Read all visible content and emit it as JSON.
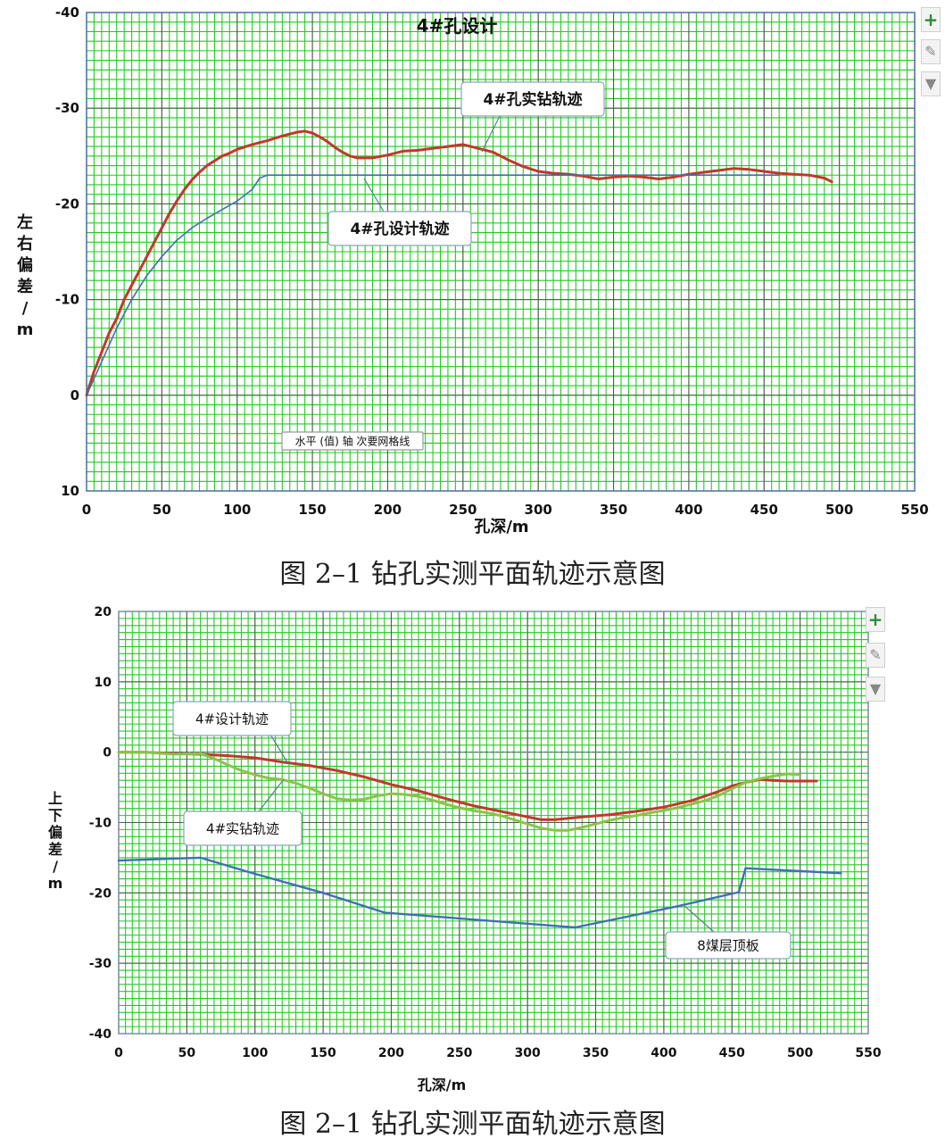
{
  "chart_data": [
    {
      "type": "line",
      "title": "4#孔设计",
      "xlabel": "孔深/m",
      "ylabel": "左右偏差/m",
      "xlim": [
        0,
        550
      ],
      "ylim": [
        -40,
        10
      ],
      "y_inverted": true,
      "x_ticks": [
        0,
        50,
        100,
        150,
        200,
        250,
        300,
        350,
        400,
        450,
        500,
        550
      ],
      "y_ticks": [
        -40,
        -30,
        -20,
        -10,
        0,
        10
      ],
      "grid": true,
      "series": [
        {
          "name": "4#孔实钻轨迹",
          "color": "#c0392b",
          "points": [
            [
              0,
              0
            ],
            [
              5,
              -2.5
            ],
            [
              10,
              -4.5
            ],
            [
              15,
              -6.5
            ],
            [
              20,
              -8
            ],
            [
              25,
              -10
            ],
            [
              30,
              -11.5
            ],
            [
              35,
              -13
            ],
            [
              40,
              -14.5
            ],
            [
              45,
              -16
            ],
            [
              50,
              -17.5
            ],
            [
              55,
              -19
            ],
            [
              60,
              -20.3
            ],
            [
              65,
              -21.5
            ],
            [
              70,
              -22.5
            ],
            [
              75,
              -23.3
            ],
            [
              80,
              -24
            ],
            [
              85,
              -24.5
            ],
            [
              90,
              -25
            ],
            [
              95,
              -25.3
            ],
            [
              100,
              -25.7
            ],
            [
              110,
              -26.2
            ],
            [
              120,
              -26.6
            ],
            [
              130,
              -27.1
            ],
            [
              140,
              -27.5
            ],
            [
              145,
              -27.6
            ],
            [
              150,
              -27.4
            ],
            [
              155,
              -27
            ],
            [
              160,
              -26.5
            ],
            [
              165,
              -25.9
            ],
            [
              170,
              -25.4
            ],
            [
              175,
              -25
            ],
            [
              180,
              -24.8
            ],
            [
              190,
              -24.8
            ],
            [
              200,
              -25.1
            ],
            [
              210,
              -25.5
            ],
            [
              220,
              -25.6
            ],
            [
              230,
              -25.8
            ],
            [
              240,
              -26
            ],
            [
              250,
              -26.2
            ],
            [
              255,
              -26
            ],
            [
              260,
              -25.8
            ],
            [
              270,
              -25.4
            ],
            [
              280,
              -24.6
            ],
            [
              290,
              -23.9
            ],
            [
              300,
              -23.4
            ],
            [
              310,
              -23.2
            ],
            [
              320,
              -23.1
            ],
            [
              330,
              -22.9
            ],
            [
              340,
              -22.6
            ],
            [
              350,
              -22.8
            ],
            [
              360,
              -22.9
            ],
            [
              370,
              -22.8
            ],
            [
              380,
              -22.6
            ],
            [
              390,
              -22.8
            ],
            [
              400,
              -23.1
            ],
            [
              410,
              -23.3
            ],
            [
              420,
              -23.5
            ],
            [
              430,
              -23.7
            ],
            [
              440,
              -23.6
            ],
            [
              450,
              -23.4
            ],
            [
              460,
              -23.2
            ],
            [
              470,
              -23.1
            ],
            [
              480,
              -23
            ],
            [
              490,
              -22.7
            ],
            [
              495,
              -22.3
            ]
          ]
        },
        {
          "name": "4#孔设计轨迹",
          "color": "#3f6fb5",
          "points": [
            [
              0,
              0
            ],
            [
              10,
              -3.5
            ],
            [
              20,
              -7
            ],
            [
              30,
              -10
            ],
            [
              40,
              -12.5
            ],
            [
              50,
              -14.5
            ],
            [
              60,
              -16.2
            ],
            [
              70,
              -17.5
            ],
            [
              80,
              -18.5
            ],
            [
              90,
              -19.4
            ],
            [
              100,
              -20.3
            ],
            [
              110,
              -21.5
            ],
            [
              115,
              -22.7
            ],
            [
              120,
              -23
            ],
            [
              460,
              -23
            ]
          ]
        }
      ],
      "annotations": [
        {
          "text": "4#孔实钻轨迹"
        },
        {
          "text": "4#孔设计轨迹"
        },
        {
          "text": "水平 (值) 轴 次要网格线"
        }
      ]
    },
    {
      "type": "line",
      "title": "",
      "xlabel": "孔深/m",
      "ylabel": "上下偏差/m",
      "xlim": [
        0,
        550
      ],
      "ylim": [
        -40,
        20
      ],
      "x_ticks": [
        0,
        50,
        100,
        150,
        200,
        250,
        300,
        350,
        400,
        450,
        500,
        550
      ],
      "y_ticks": [
        20,
        10,
        0,
        -10,
        -20,
        -30,
        -40
      ],
      "grid": true,
      "series": [
        {
          "name": "4#设计轨迹",
          "color": "#c0392b",
          "points": [
            [
              0,
              0
            ],
            [
              20,
              0
            ],
            [
              40,
              -0.2
            ],
            [
              60,
              -0.3
            ],
            [
              80,
              -0.5
            ],
            [
              100,
              -0.8
            ],
            [
              120,
              -1.4
            ],
            [
              140,
              -1.9
            ],
            [
              160,
              -2.6
            ],
            [
              180,
              -3.5
            ],
            [
              200,
              -4.6
            ],
            [
              220,
              -5.5
            ],
            [
              240,
              -6.6
            ],
            [
              260,
              -7.6
            ],
            [
              280,
              -8.4
            ],
            [
              300,
              -9.2
            ],
            [
              310,
              -9.6
            ],
            [
              320,
              -9.6
            ],
            [
              330,
              -9.4
            ],
            [
              340,
              -9.2
            ],
            [
              360,
              -8.9
            ],
            [
              380,
              -8.4
            ],
            [
              400,
              -7.8
            ],
            [
              420,
              -6.9
            ],
            [
              440,
              -5.6
            ],
            [
              450,
              -4.8
            ],
            [
              460,
              -4.3
            ],
            [
              470,
              -3.9
            ],
            [
              480,
              -4
            ],
            [
              490,
              -4.1
            ],
            [
              500,
              -4.1
            ],
            [
              512,
              -4.1
            ]
          ]
        },
        {
          "name": "4#实钻轨迹",
          "color": "#8bc34a",
          "points": [
            [
              0,
              0
            ],
            [
              20,
              0
            ],
            [
              40,
              -0.3
            ],
            [
              60,
              -0.2
            ],
            [
              70,
              -0.9
            ],
            [
              80,
              -1.8
            ],
            [
              90,
              -2.6
            ],
            [
              100,
              -3.2
            ],
            [
              110,
              -3.7
            ],
            [
              120,
              -3.9
            ],
            [
              130,
              -4.4
            ],
            [
              140,
              -5.1
            ],
            [
              150,
              -5.9
            ],
            [
              160,
              -6.6
            ],
            [
              170,
              -6.8
            ],
            [
              180,
              -6.7
            ],
            [
              190,
              -6.2
            ],
            [
              200,
              -5.9
            ],
            [
              210,
              -6
            ],
            [
              220,
              -6.3
            ],
            [
              230,
              -6.8
            ],
            [
              240,
              -7.4
            ],
            [
              250,
              -7.9
            ],
            [
              260,
              -8.3
            ],
            [
              270,
              -8.6
            ],
            [
              280,
              -9
            ],
            [
              290,
              -9.6
            ],
            [
              300,
              -10.2
            ],
            [
              310,
              -10.8
            ],
            [
              320,
              -11.1
            ],
            [
              330,
              -11.1
            ],
            [
              340,
              -10.7
            ],
            [
              350,
              -10.2
            ],
            [
              360,
              -9.7
            ],
            [
              370,
              -9.3
            ],
            [
              380,
              -9
            ],
            [
              390,
              -8.6
            ],
            [
              400,
              -8.3
            ],
            [
              410,
              -7.9
            ],
            [
              420,
              -7.4
            ],
            [
              430,
              -6.9
            ],
            [
              440,
              -6.2
            ],
            [
              450,
              -5.2
            ],
            [
              460,
              -4.3
            ],
            [
              470,
              -3.8
            ],
            [
              480,
              -3.4
            ],
            [
              490,
              -3.1
            ],
            [
              500,
              -3.2
            ]
          ]
        },
        {
          "name": "8煤层顶板",
          "color": "#3f6fb5",
          "points": [
            [
              0,
              -15.4
            ],
            [
              60,
              -15
            ],
            [
              100,
              -17.3
            ],
            [
              150,
              -20
            ],
            [
              195,
              -22.8
            ],
            [
              335,
              -24.9
            ],
            [
              410,
              -21.9
            ],
            [
              455,
              -19.9
            ],
            [
              460,
              -16.5
            ],
            [
              530,
              -17.2
            ]
          ]
        }
      ],
      "annotations": [
        {
          "text": "4#设计轨迹"
        },
        {
          "text": "4#实钻轨迹"
        },
        {
          "text": "8煤层顶板"
        }
      ]
    }
  ],
  "captions": {
    "figure1": "图 2–1 钻孔实测平面轨迹示意图",
    "figure2": "图 2–1 钻孔实测平面轨迹示意图"
  },
  "side_buttons": {
    "plus": "+",
    "brush": "✎",
    "filter": "▼"
  }
}
